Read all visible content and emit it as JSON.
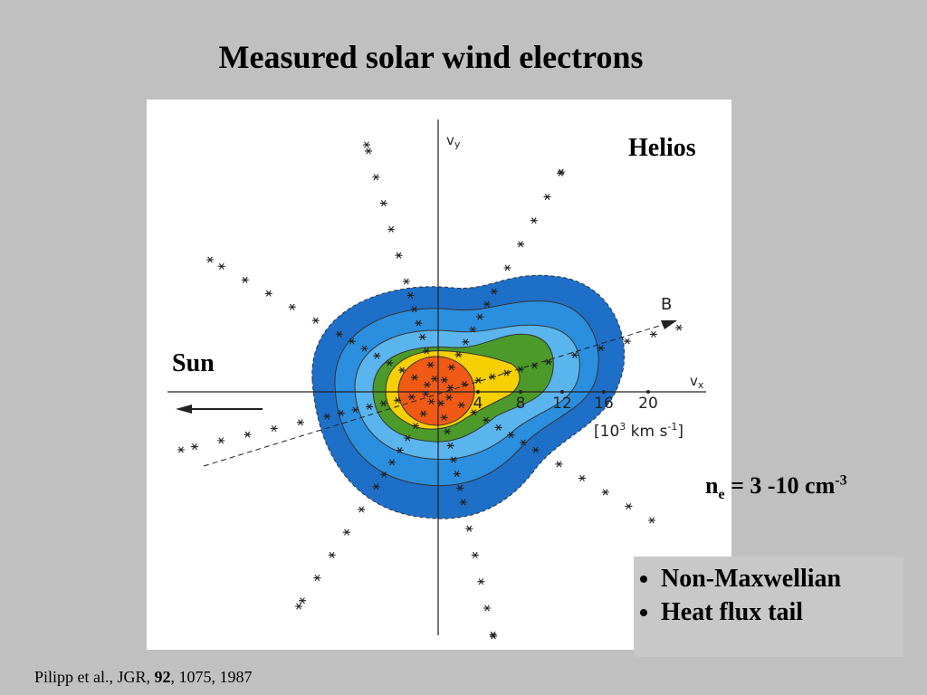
{
  "title": "Measured solar wind electrons",
  "figure": {
    "y_axis_label": {
      "v": "v",
      "sub": "y"
    },
    "x_axis_label": {
      "v": "v",
      "sub": "x"
    },
    "field_label": "B",
    "x_ticks": [
      "4",
      "8",
      "12",
      "16",
      "20"
    ],
    "unit": {
      "open": "[10",
      "exp": "3",
      "rest": " km s",
      "exp2": "-1",
      "close": "]"
    },
    "spacecraft": "Helios",
    "sun": "Sun"
  },
  "density": {
    "n": "n",
    "sub": "e",
    "text": " = 3 -10 cm",
    "sup": "-3"
  },
  "bullets": [
    "Non-Maxwellian",
    "Heat flux tail"
  ],
  "citation": {
    "pre": "Pilipp et al., JGR, ",
    "volume": "92",
    "post": ", 1075, 1987"
  }
}
